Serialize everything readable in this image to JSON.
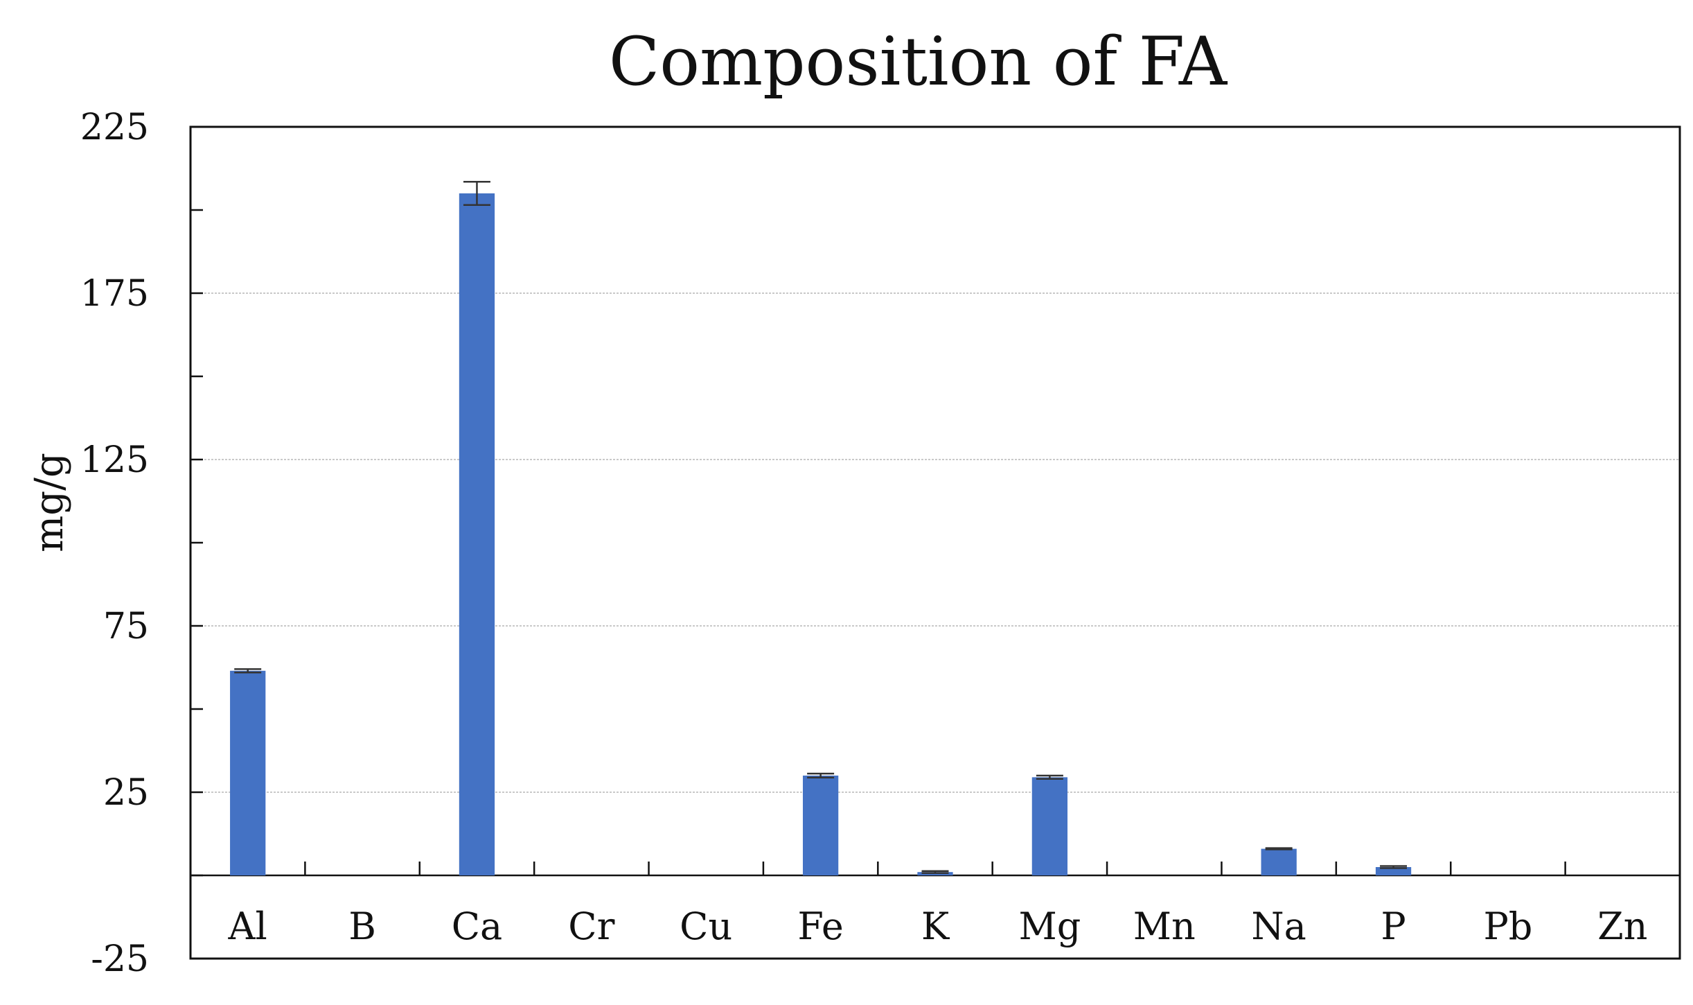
{
  "chart_data": {
    "type": "bar",
    "title": "Composition of FA",
    "xlabel": "",
    "ylabel": "mg/g",
    "ylim": [
      -25,
      225
    ],
    "yticks": [
      -25,
      25,
      75,
      125,
      175,
      225
    ],
    "grid": true,
    "legend": "none",
    "bar_color": "#4472C4",
    "categories": [
      "Al",
      "B",
      "Ca",
      "Cr",
      "Cu",
      "Fe",
      "K",
      "Mg",
      "Mn",
      "Na",
      "P",
      "Pb",
      "Zn"
    ],
    "values": [
      61.5,
      0,
      205,
      0,
      0,
      30,
      1,
      29.5,
      0,
      8,
      2.5,
      0,
      0
    ],
    "errors": [
      0.5,
      0,
      3.5,
      0,
      0,
      0.6,
      0.3,
      0.5,
      0,
      0.2,
      0.3,
      0,
      0
    ]
  }
}
